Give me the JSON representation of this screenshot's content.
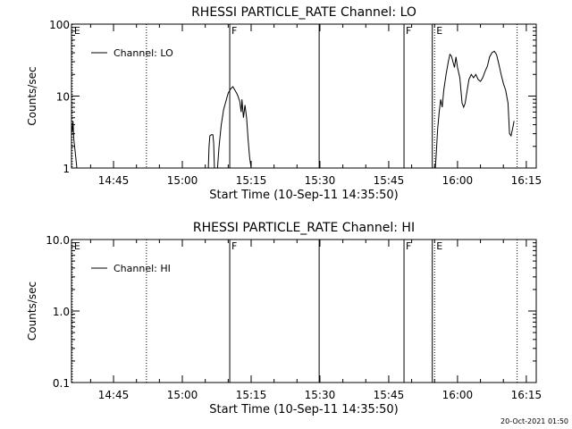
{
  "footer": {
    "timestamp": "20-Oct-2021 01:50"
  },
  "chart_data": [
    {
      "type": "line",
      "title": "RHESSI PARTICLE_RATE Channel: LO",
      "xlabel": "Start Time (10-Sep-11 14:35:50)",
      "ylabel": "Counts/sec",
      "yscale": "log",
      "ylim": [
        1,
        100
      ],
      "xlim": [
        "14:35:50",
        "16:17:10"
      ],
      "yticks": [
        1,
        10,
        100
      ],
      "ytick_labels": [
        "1",
        "10",
        "100"
      ],
      "xtick_labels": [
        "14:45",
        "15:00",
        "15:15",
        "15:30",
        "15:45",
        "16:00",
        "16:15"
      ],
      "legend": {
        "label": "Channel: LO",
        "placement": "top-left"
      },
      "markers": [
        {
          "time": "14:36:00",
          "label": "E",
          "style": "dotted"
        },
        {
          "time": "14:52:10",
          "label": "",
          "style": "dotted"
        },
        {
          "time": "15:10:20",
          "label": "F",
          "style": "solid"
        },
        {
          "time": "15:29:50",
          "label": "",
          "style": "solid"
        },
        {
          "time": "15:48:20",
          "label": "F",
          "style": "solid"
        },
        {
          "time": "15:54:30",
          "label": "",
          "style": "solid"
        },
        {
          "time": "15:55:00",
          "label": "E",
          "style": "dotted"
        },
        {
          "time": "16:13:00",
          "label": "",
          "style": "dotted"
        }
      ],
      "series": [
        {
          "segments": [
            [
              [
                "14:35:50",
                4.0
              ],
              [
                "14:36:00",
                3.2
              ],
              [
                "14:36:10",
                4.5
              ],
              [
                "14:36:20",
                2.5
              ],
              [
                "14:36:40",
                1.6
              ],
              [
                "14:37:00",
                1.0
              ]
            ],
            [
              [
                "15:05:40",
                1.0
              ],
              [
                "15:05:50",
                2.0
              ],
              [
                "15:06:00",
                2.8
              ],
              [
                "15:06:20",
                2.9
              ],
              [
                "15:06:40",
                2.9
              ],
              [
                "15:06:50",
                2.2
              ],
              [
                "15:07:00",
                1.0
              ]
            ],
            [
              [
                "15:07:40",
                1.0
              ],
              [
                "15:08:00",
                2.0
              ],
              [
                "15:08:30",
                4.0
              ],
              [
                "15:09:00",
                6.5
              ],
              [
                "15:09:30",
                8.5
              ],
              [
                "15:10:00",
                11.0
              ],
              [
                "15:10:30",
                12.5
              ],
              [
                "15:11:00",
                13.5
              ],
              [
                "15:11:30",
                12.0
              ],
              [
                "15:12:00",
                10.5
              ],
              [
                "15:12:30",
                8.5
              ],
              [
                "15:12:50",
                6.0
              ],
              [
                "15:13:00",
                9.0
              ],
              [
                "15:13:20",
                5.0
              ],
              [
                "15:13:40",
                7.5
              ],
              [
                "15:14:00",
                5.0
              ],
              [
                "15:14:20",
                2.5
              ],
              [
                "15:14:40",
                1.4
              ],
              [
                "15:15:00",
                1.0
              ]
            ],
            [
              [
                "15:55:10",
                1.0
              ],
              [
                "15:55:20",
                1.5
              ],
              [
                "15:55:40",
                3.5
              ],
              [
                "15:56:00",
                6.0
              ],
              [
                "15:56:20",
                9.0
              ],
              [
                "15:56:40",
                7.0
              ],
              [
                "15:57:00",
                12.0
              ],
              [
                "15:57:30",
                20.0
              ],
              [
                "15:58:00",
                30.0
              ],
              [
                "15:58:20",
                38.0
              ],
              [
                "15:58:40",
                36.0
              ],
              [
                "15:59:00",
                30.0
              ],
              [
                "15:59:20",
                25.0
              ],
              [
                "15:59:40",
                35.0
              ],
              [
                "16:00:00",
                25.0
              ],
              [
                "16:00:30",
                18.0
              ],
              [
                "16:01:00",
                8.0
              ],
              [
                "16:01:20",
                7.0
              ],
              [
                "16:01:40",
                8.0
              ],
              [
                "16:02:00",
                11.0
              ],
              [
                "16:02:30",
                17.0
              ],
              [
                "16:03:00",
                20.0
              ],
              [
                "16:03:30",
                18.0
              ],
              [
                "16:04:00",
                20.0
              ],
              [
                "16:04:30",
                17.0
              ],
              [
                "16:05:00",
                16.0
              ],
              [
                "16:05:30",
                18.0
              ],
              [
                "16:06:00",
                22.0
              ],
              [
                "16:06:30",
                26.0
              ],
              [
                "16:07:00",
                35.0
              ],
              [
                "16:07:30",
                40.0
              ],
              [
                "16:08:00",
                42.0
              ],
              [
                "16:08:30",
                38.0
              ],
              [
                "16:09:00",
                28.0
              ],
              [
                "16:09:30",
                20.0
              ],
              [
                "16:10:00",
                15.0
              ],
              [
                "16:10:30",
                12.0
              ],
              [
                "16:11:00",
                8.0
              ],
              [
                "16:11:20",
                3.0
              ],
              [
                "16:11:40",
                2.8
              ],
              [
                "16:12:00",
                3.5
              ],
              [
                "16:12:20",
                4.5
              ]
            ]
          ]
        }
      ]
    },
    {
      "type": "line",
      "title": "RHESSI PARTICLE_RATE Channel: HI",
      "xlabel": "Start Time (10-Sep-11 14:35:50)",
      "ylabel": "Counts/sec",
      "yscale": "log",
      "ylim": [
        0.1,
        10
      ],
      "xlim": [
        "14:35:50",
        "16:17:10"
      ],
      "yticks": [
        0.1,
        1,
        10
      ],
      "ytick_labels": [
        "0.1",
        "1.0",
        "10.0"
      ],
      "xtick_labels": [
        "14:45",
        "15:00",
        "15:15",
        "15:30",
        "15:45",
        "16:00",
        "16:15"
      ],
      "legend": {
        "label": "Channel: HI",
        "placement": "top-left"
      },
      "markers": [
        {
          "time": "14:36:00",
          "label": "E",
          "style": "dotted"
        },
        {
          "time": "14:52:10",
          "label": "",
          "style": "dotted"
        },
        {
          "time": "15:10:20",
          "label": "F",
          "style": "solid"
        },
        {
          "time": "15:29:50",
          "label": "",
          "style": "solid"
        },
        {
          "time": "15:48:20",
          "label": "F",
          "style": "solid"
        },
        {
          "time": "15:54:30",
          "label": "",
          "style": "solid"
        },
        {
          "time": "15:55:00",
          "label": "E",
          "style": "dotted"
        },
        {
          "time": "16:13:00",
          "label": "",
          "style": "dotted"
        }
      ],
      "series": [
        {
          "segments": []
        }
      ]
    }
  ]
}
